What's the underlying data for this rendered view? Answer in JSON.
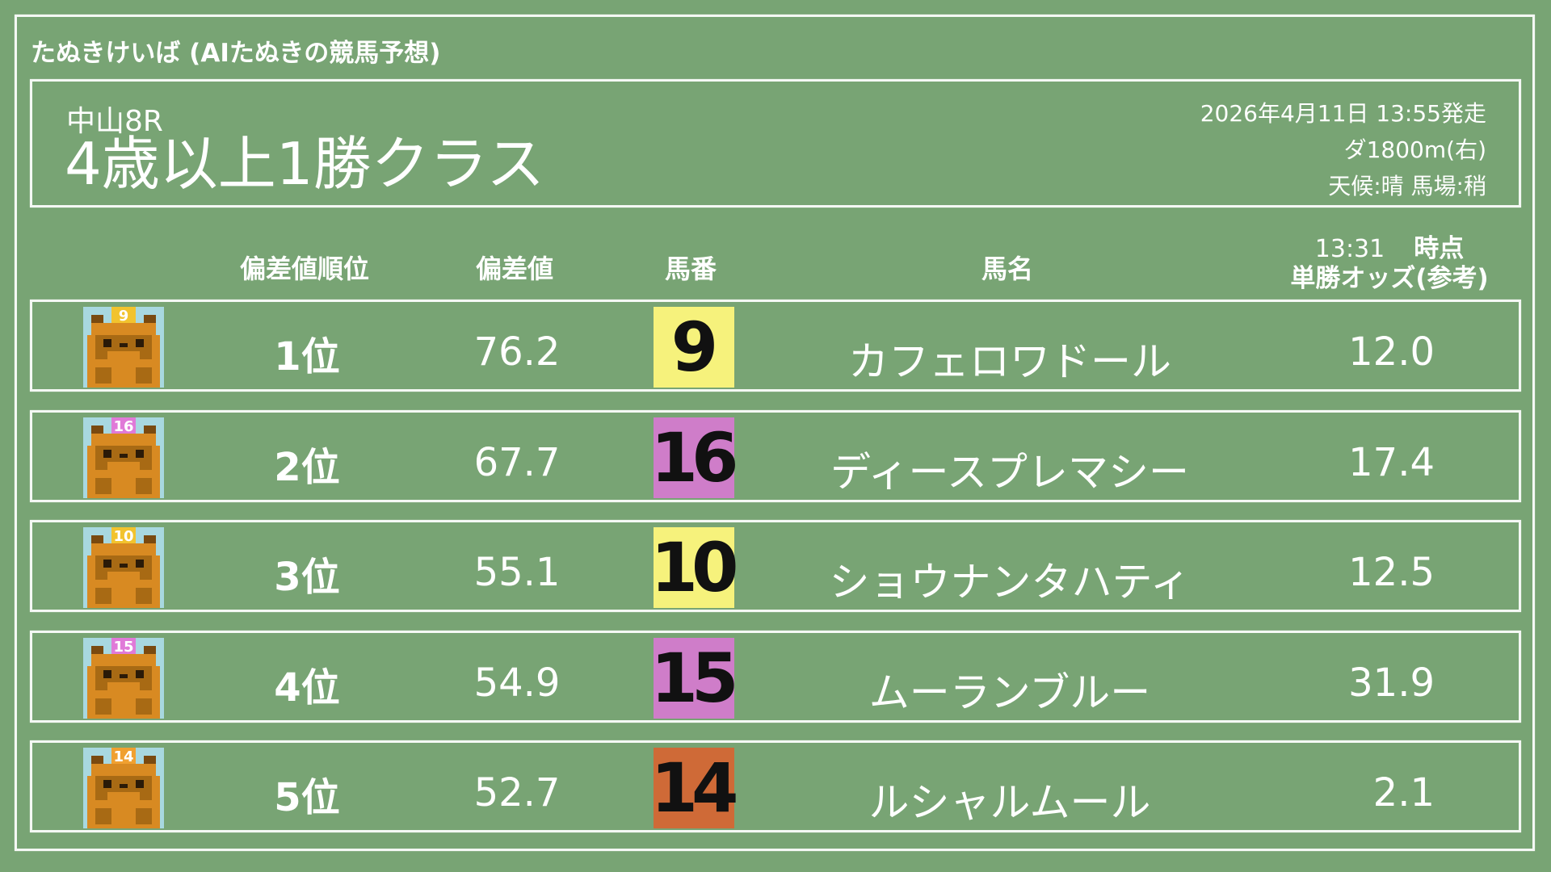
{
  "site_title": "たぬきけいば (AIたぬきの競馬予想)",
  "race": {
    "venue_round": "中山8R",
    "name": "4歳以上1勝クラス",
    "datetime": "2026年4月11日 13:55発走",
    "course": "ダ1800m(右)",
    "conditions": "天候:晴 馬場:稍"
  },
  "columns": {
    "rank": "偏差値順位",
    "deviation": "偏差値",
    "number": "馬番",
    "horse": "馬名",
    "odds_time": "13:31",
    "odds_time_suffix": "時点",
    "odds": "単勝オッズ(参考)"
  },
  "colors": {
    "background": "#78a474",
    "yellow": "#f6f27c",
    "pink": "#cf7dc9",
    "orange": "#cf6a37"
  },
  "rows": [
    {
      "rank": "1位",
      "deviation": "76.2",
      "number": "9",
      "horse": "カフェロワドール",
      "odds": "12.0",
      "color": "#f6f27c"
    },
    {
      "rank": "2位",
      "deviation": "67.7",
      "number": "16",
      "horse": "ディースプレマシー",
      "odds": "17.4",
      "color": "#cf7dc9"
    },
    {
      "rank": "3位",
      "deviation": "55.1",
      "number": "10",
      "horse": "ショウナンタハティ",
      "odds": "12.5",
      "color": "#f6f27c"
    },
    {
      "rank": "4位",
      "deviation": "54.9",
      "number": "15",
      "horse": "ムーランブルー",
      "odds": "31.9",
      "color": "#cf7dc9"
    },
    {
      "rank": "5位",
      "deviation": "52.7",
      "number": "14",
      "horse": "ルシャルムール",
      "odds": "2.1",
      "color": "#cf6a37"
    }
  ]
}
